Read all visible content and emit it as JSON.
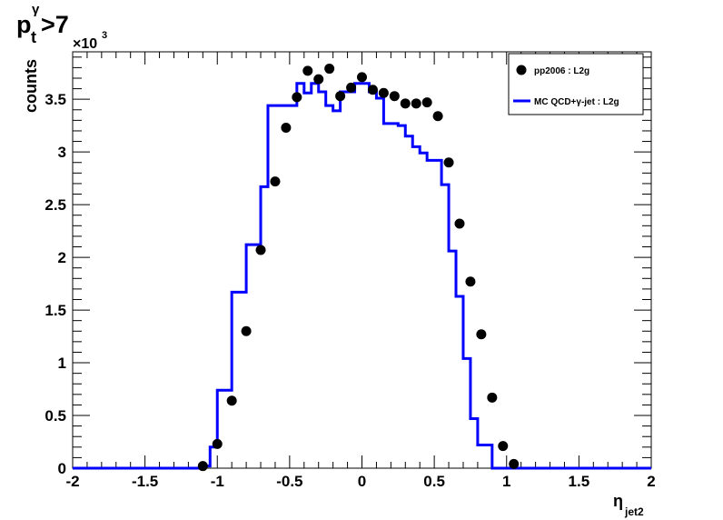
{
  "colors": {
    "data": "#000000",
    "mc": "#0000ff",
    "frame": "#000000"
  },
  "chart_data": {
    "type": "line",
    "title_parts": {
      "main": "p",
      "sup": "γ",
      "sub": "t",
      "rest": ">7"
    },
    "xlabel_main": "η",
    "xlabel_sub": "jet2",
    "ylabel": "counts",
    "y_multiplier": {
      "prefix": "×10",
      "exp": "3"
    },
    "xlim": [
      -2,
      2
    ],
    "ylim": [
      0,
      3.95
    ],
    "x_ticks": [
      -2,
      -1.5,
      -1,
      -0.5,
      0,
      0.5,
      1,
      1.5,
      2
    ],
    "x_tick_labels": [
      "-2",
      "-1.5",
      "-1",
      "-0.5",
      "0",
      "0.5",
      "1",
      "1.5",
      "2"
    ],
    "y_ticks": [
      0,
      0.5,
      1,
      1.5,
      2,
      2.5,
      3,
      3.5
    ],
    "y_tick_labels": [
      "0",
      "0.5",
      "1",
      "1.5",
      "2",
      "2.5",
      "3",
      "3.5"
    ],
    "legend_position": "top-right",
    "series": [
      {
        "name": "pp2006 : L2g",
        "style": "markers",
        "x": [
          -1.1,
          -1.0,
          -0.9,
          -0.8,
          -0.7,
          -0.6,
          -0.525,
          -0.45,
          -0.375,
          -0.3,
          -0.225,
          -0.15,
          -0.075,
          0.0,
          0.075,
          0.15,
          0.225,
          0.3,
          0.375,
          0.45,
          0.525,
          0.6,
          0.675,
          0.75,
          0.825,
          0.9,
          0.975,
          1.05
        ],
        "y": [
          0.02,
          0.23,
          0.64,
          1.3,
          2.07,
          2.72,
          3.23,
          3.52,
          3.77,
          3.69,
          3.79,
          3.53,
          3.61,
          3.71,
          3.59,
          3.56,
          3.53,
          3.46,
          3.46,
          3.47,
          3.34,
          2.9,
          2.32,
          1.77,
          1.27,
          0.67,
          0.21,
          0.04
        ]
      },
      {
        "name": "MC QCD+γ-jet : L2g",
        "style": "step",
        "edges": [
          -2.0,
          -1.2,
          -1.1,
          -1.05,
          -1.0,
          -0.9,
          -0.8,
          -0.7,
          -0.65,
          -0.55,
          -0.45,
          -0.4,
          -0.35,
          -0.3,
          -0.25,
          -0.2,
          -0.15,
          -0.1,
          -0.05,
          0.0,
          0.05,
          0.1,
          0.15,
          0.2,
          0.25,
          0.3,
          0.35,
          0.4,
          0.45,
          0.5,
          0.55,
          0.6,
          0.65,
          0.7,
          0.75,
          0.8,
          0.85,
          0.9,
          0.95,
          1.0,
          1.05,
          1.1,
          2.0
        ],
        "y": [
          0.0,
          0.0,
          0.02,
          0.2,
          0.74,
          1.67,
          2.12,
          2.67,
          3.44,
          3.44,
          3.65,
          3.56,
          3.65,
          3.57,
          3.44,
          3.39,
          3.57,
          3.57,
          3.65,
          3.65,
          3.57,
          3.51,
          3.27,
          3.27,
          3.25,
          3.15,
          3.05,
          2.99,
          2.92,
          2.92,
          2.69,
          2.06,
          1.63,
          1.04,
          0.47,
          0.22,
          0.22,
          0.0,
          0.0,
          0.0,
          0.0,
          0.0
        ]
      }
    ]
  }
}
